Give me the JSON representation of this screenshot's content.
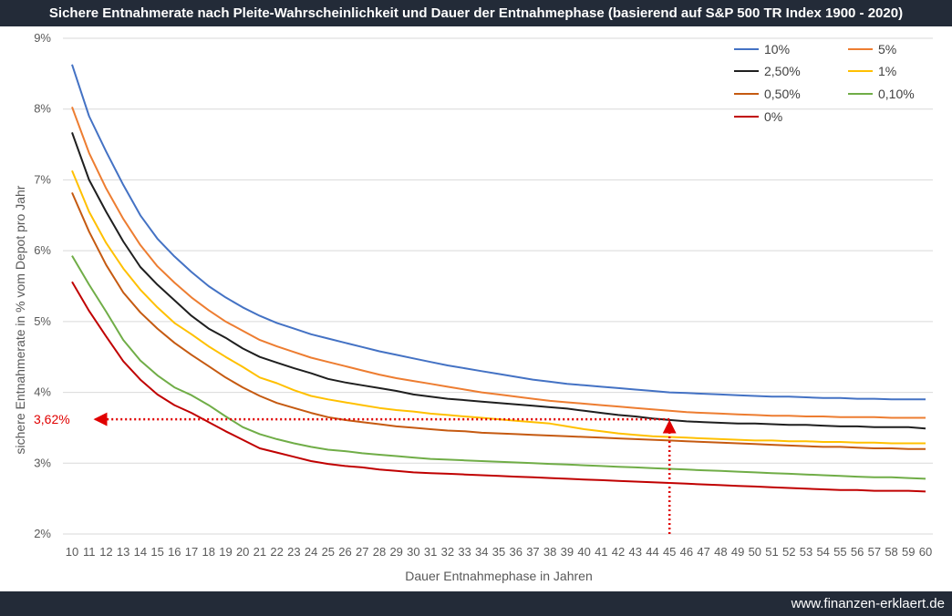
{
  "header": {
    "title": "Sichere Entnahmerate nach Pleite-Wahrscheinlichkeit und Dauer der Entnahmephase (basierend auf S&P 500 TR Index 1900 - 2020)"
  },
  "footer": {
    "website": "www.finanzen-erklaert.de"
  },
  "chart_data": {
    "type": "line",
    "title": "Sichere Entnahmerate nach Pleite-Wahrscheinlichkeit und Dauer der Entnahmephase (basierend auf S&P 500 TR Index 1900 - 2020)",
    "xlabel": "Dauer Entnahmephase in Jahren",
    "ylabel": "sichere Entnahmerate in % vom Depot pro Jahr",
    "x": [
      10,
      11,
      12,
      13,
      14,
      15,
      16,
      17,
      18,
      19,
      20,
      21,
      22,
      23,
      24,
      25,
      26,
      27,
      28,
      29,
      30,
      31,
      32,
      33,
      34,
      35,
      36,
      37,
      38,
      39,
      40,
      41,
      42,
      43,
      44,
      45,
      46,
      47,
      48,
      49,
      50,
      51,
      52,
      53,
      54,
      55,
      56,
      57,
      58,
      59,
      60
    ],
    "xticks": [
      "10",
      "11",
      "12",
      "13",
      "14",
      "15",
      "16",
      "17",
      "18",
      "19",
      "20",
      "21",
      "22",
      "23",
      "24",
      "25",
      "26",
      "27",
      "28",
      "29",
      "30",
      "31",
      "32",
      "33",
      "34",
      "35",
      "36",
      "37",
      "38",
      "39",
      "40",
      "41",
      "42",
      "43",
      "44",
      "45",
      "46",
      "47",
      "48",
      "49",
      "50",
      "51",
      "52",
      "53",
      "54",
      "55",
      "56",
      "57",
      "58",
      "59",
      "60"
    ],
    "ylim": [
      2,
      9
    ],
    "yticks": [
      "2%",
      "3%",
      "4%",
      "5%",
      "6%",
      "7%",
      "8%",
      "9%"
    ],
    "grid": "horizontal",
    "legend_position": "top-right",
    "series": [
      {
        "name": "10%",
        "color": "#4472c4",
        "values": [
          8.63,
          7.9,
          7.4,
          6.93,
          6.5,
          6.17,
          5.92,
          5.7,
          5.5,
          5.34,
          5.2,
          5.08,
          4.98,
          4.9,
          4.82,
          4.76,
          4.7,
          4.64,
          4.58,
          4.53,
          4.48,
          4.43,
          4.38,
          4.34,
          4.3,
          4.26,
          4.22,
          4.18,
          4.15,
          4.12,
          4.1,
          4.08,
          4.06,
          4.04,
          4.02,
          4.0,
          3.99,
          3.98,
          3.97,
          3.96,
          3.95,
          3.94,
          3.94,
          3.93,
          3.92,
          3.92,
          3.91,
          3.91,
          3.9,
          3.9,
          3.9
        ]
      },
      {
        "name": "5%",
        "color": "#ed7d31",
        "values": [
          8.03,
          7.38,
          6.88,
          6.45,
          6.08,
          5.78,
          5.55,
          5.34,
          5.16,
          5.0,
          4.87,
          4.74,
          4.65,
          4.57,
          4.49,
          4.43,
          4.37,
          4.31,
          4.25,
          4.2,
          4.16,
          4.12,
          4.08,
          4.04,
          4.0,
          3.97,
          3.94,
          3.91,
          3.88,
          3.86,
          3.84,
          3.82,
          3.8,
          3.78,
          3.76,
          3.74,
          3.72,
          3.71,
          3.7,
          3.69,
          3.68,
          3.67,
          3.67,
          3.66,
          3.66,
          3.65,
          3.65,
          3.65,
          3.64,
          3.64,
          3.64
        ]
      },
      {
        "name": "2,50%",
        "color": "#1f1f1f",
        "values": [
          7.67,
          7.0,
          6.55,
          6.13,
          5.77,
          5.52,
          5.3,
          5.08,
          4.9,
          4.77,
          4.62,
          4.5,
          4.42,
          4.34,
          4.27,
          4.19,
          4.14,
          4.1,
          4.06,
          4.02,
          3.97,
          3.94,
          3.91,
          3.89,
          3.87,
          3.85,
          3.83,
          3.81,
          3.79,
          3.77,
          3.74,
          3.71,
          3.68,
          3.66,
          3.63,
          3.61,
          3.59,
          3.58,
          3.57,
          3.56,
          3.56,
          3.55,
          3.54,
          3.54,
          3.53,
          3.52,
          3.52,
          3.51,
          3.51,
          3.51,
          3.49
        ]
      },
      {
        "name": "1%",
        "color": "#ffc000",
        "values": [
          7.13,
          6.55,
          6.11,
          5.75,
          5.45,
          5.2,
          4.98,
          4.82,
          4.65,
          4.5,
          4.36,
          4.21,
          4.13,
          4.03,
          3.95,
          3.9,
          3.86,
          3.82,
          3.78,
          3.75,
          3.73,
          3.7,
          3.68,
          3.66,
          3.64,
          3.62,
          3.6,
          3.58,
          3.56,
          3.52,
          3.48,
          3.45,
          3.42,
          3.4,
          3.38,
          3.37,
          3.36,
          3.35,
          3.34,
          3.33,
          3.32,
          3.32,
          3.31,
          3.31,
          3.3,
          3.3,
          3.29,
          3.29,
          3.28,
          3.28,
          3.28
        ]
      },
      {
        "name": "0,50%",
        "color": "#c55a11",
        "values": [
          6.82,
          6.27,
          5.8,
          5.41,
          5.13,
          4.9,
          4.7,
          4.53,
          4.37,
          4.21,
          4.07,
          3.95,
          3.85,
          3.78,
          3.71,
          3.65,
          3.61,
          3.58,
          3.55,
          3.52,
          3.5,
          3.48,
          3.46,
          3.45,
          3.43,
          3.42,
          3.41,
          3.4,
          3.39,
          3.38,
          3.37,
          3.36,
          3.35,
          3.34,
          3.33,
          3.32,
          3.31,
          3.3,
          3.29,
          3.28,
          3.27,
          3.26,
          3.25,
          3.24,
          3.23,
          3.23,
          3.22,
          3.21,
          3.21,
          3.2,
          3.2
        ]
      },
      {
        "name": "0,10%",
        "color": "#70ad47",
        "values": [
          5.93,
          5.52,
          5.14,
          4.74,
          4.45,
          4.24,
          4.07,
          3.96,
          3.82,
          3.66,
          3.51,
          3.41,
          3.34,
          3.28,
          3.23,
          3.19,
          3.17,
          3.14,
          3.12,
          3.1,
          3.08,
          3.06,
          3.05,
          3.04,
          3.03,
          3.02,
          3.01,
          3.0,
          2.99,
          2.98,
          2.97,
          2.96,
          2.95,
          2.94,
          2.93,
          2.92,
          2.91,
          2.9,
          2.89,
          2.88,
          2.87,
          2.86,
          2.85,
          2.84,
          2.83,
          2.82,
          2.81,
          2.8,
          2.8,
          2.79,
          2.78
        ]
      },
      {
        "name": "0%",
        "color": "#c00000",
        "values": [
          5.56,
          5.15,
          4.79,
          4.44,
          4.18,
          3.97,
          3.82,
          3.71,
          3.58,
          3.45,
          3.33,
          3.21,
          3.15,
          3.09,
          3.03,
          2.99,
          2.96,
          2.94,
          2.91,
          2.89,
          2.87,
          2.86,
          2.85,
          2.84,
          2.83,
          2.82,
          2.81,
          2.8,
          2.79,
          2.78,
          2.77,
          2.76,
          2.75,
          2.74,
          2.73,
          2.72,
          2.71,
          2.7,
          2.69,
          2.68,
          2.67,
          2.66,
          2.65,
          2.64,
          2.63,
          2.62,
          2.62,
          2.61,
          2.61,
          2.61,
          2.6
        ]
      }
    ],
    "annotations": [
      {
        "label": "3,62%",
        "x": 45,
        "y": 3.62,
        "color": "#e00000",
        "style": "dotted arrows to both axes"
      }
    ]
  }
}
